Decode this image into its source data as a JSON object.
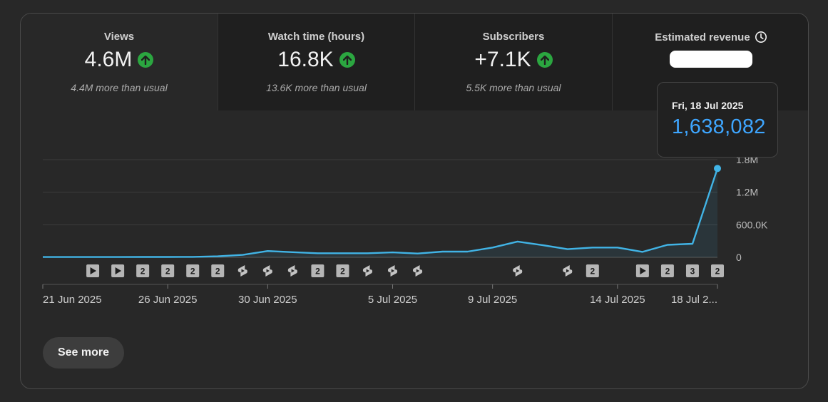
{
  "metrics": [
    {
      "label": "Views",
      "value": "4.6M",
      "sub": "4.4M more than usual",
      "trend_icon": "arrow-up-icon",
      "trend_color": "#2ba640"
    },
    {
      "label": "Watch time (hours)",
      "value": "16.8K",
      "sub": "13.6K more than usual",
      "trend_icon": "arrow-up-icon",
      "trend_color": "#2ba640"
    },
    {
      "label": "Subscribers",
      "value": "+7.1K",
      "sub": "5.5K more than usual",
      "trend_icon": "arrow-up-icon",
      "trend_color": "#2ba640"
    },
    {
      "label": "Estimated revenue",
      "value_redacted": true,
      "icon": "clock-icon"
    }
  ],
  "tooltip": {
    "date": "Fri, 18 Jul 2025",
    "value": "1,638,082"
  },
  "chart_data": {
    "type": "line",
    "title": "Views",
    "series": [
      {
        "name": "Views",
        "color": "#41b4e6",
        "values": [
          5000,
          5000,
          5000,
          5000,
          6000,
          6000,
          8000,
          18000,
          45000,
          115000,
          95000,
          75000,
          75000,
          75000,
          90000,
          70000,
          105000,
          105000,
          180000,
          290000,
          225000,
          150000,
          180000,
          180000,
          100000,
          230000,
          250000,
          1638082
        ]
      }
    ],
    "x_tick_labels": [
      "21 Jun 2025",
      "26 Jun 2025",
      "30 Jun 2025",
      "5 Jul 2025",
      "9 Jul 2025",
      "14 Jul 2025",
      "18 Jul 2..."
    ],
    "x_tick_index": [
      0,
      5,
      9,
      14,
      18,
      23,
      27
    ],
    "y_ticks": [
      0,
      600000,
      1200000,
      1800000
    ],
    "y_tick_labels": [
      "0",
      "600.0K",
      "1.2M",
      "1.8M"
    ],
    "ylim": [
      0,
      1800000
    ],
    "highlight_index": 27
  },
  "markers": [
    {
      "index": 2,
      "type": "video",
      "label": ""
    },
    {
      "index": 3,
      "type": "video",
      "label": ""
    },
    {
      "index": 4,
      "type": "count",
      "label": "2"
    },
    {
      "index": 5,
      "type": "count",
      "label": "2"
    },
    {
      "index": 6,
      "type": "count",
      "label": "2"
    },
    {
      "index": 7,
      "type": "count",
      "label": "2"
    },
    {
      "index": 8,
      "type": "short",
      "label": ""
    },
    {
      "index": 9,
      "type": "short",
      "label": ""
    },
    {
      "index": 10,
      "type": "short",
      "label": ""
    },
    {
      "index": 11,
      "type": "count",
      "label": "2"
    },
    {
      "index": 12,
      "type": "count",
      "label": "2"
    },
    {
      "index": 13,
      "type": "short",
      "label": ""
    },
    {
      "index": 14,
      "type": "short",
      "label": ""
    },
    {
      "index": 15,
      "type": "short",
      "label": ""
    },
    {
      "index": 19,
      "type": "short",
      "label": ""
    },
    {
      "index": 21,
      "type": "short",
      "label": ""
    },
    {
      "index": 22,
      "type": "count",
      "label": "2"
    },
    {
      "index": 24,
      "type": "video",
      "label": ""
    },
    {
      "index": 25,
      "type": "count",
      "label": "2"
    },
    {
      "index": 26,
      "type": "count",
      "label": "3"
    },
    {
      "index": 27,
      "type": "count",
      "label": "2"
    }
  ],
  "see_more_label": "See more"
}
